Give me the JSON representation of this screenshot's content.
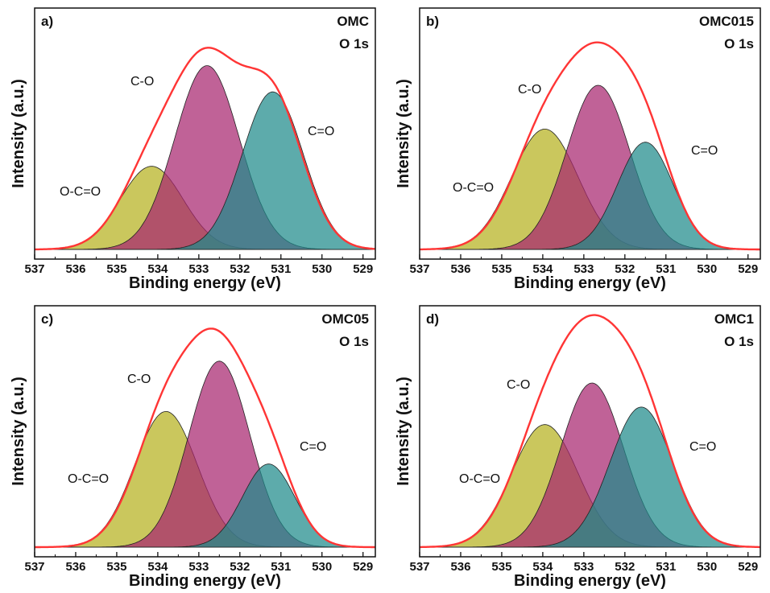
{
  "figure": {
    "x_label": "Binding energy (eV)",
    "y_label": "Intensity (a.u.)",
    "x_ticks": [
      "537",
      "536",
      "535",
      "534",
      "533",
      "532",
      "531",
      "530",
      "529"
    ],
    "spectrum": "O 1s",
    "colors": {
      "envelope": "#ff3535",
      "O-C=O": "#b5b21f",
      "C-O": "#a8266f",
      "C=O": "#1e8a8a",
      "frame": "#111111"
    }
  },
  "chart_data": [
    {
      "type": "area",
      "panel": "a)",
      "sample": "OMC",
      "spectrum": "O 1s",
      "xlabel": "Binding energy (eV)",
      "ylabel": "Intensity (a.u.)",
      "xlim": [
        537,
        528.7
      ],
      "x_reversed": true,
      "envelope_label": "",
      "series": [
        {
          "name": "O-C=O",
          "center": 534.15,
          "fwhm": 1.8,
          "height": 0.38
        },
        {
          "name": "C-O",
          "center": 532.8,
          "fwhm": 1.85,
          "height": 0.84
        },
        {
          "name": "C=O",
          "center": 531.2,
          "fwhm": 1.75,
          "height": 0.72
        }
      ]
    },
    {
      "type": "area",
      "panel": "b)",
      "sample": "OMC015",
      "spectrum": "O 1s",
      "xlabel": "Binding energy (eV)",
      "ylabel": "Intensity (a.u.)",
      "xlim": [
        537,
        528.7
      ],
      "x_reversed": true,
      "envelope_label": "",
      "series": [
        {
          "name": "O-C=O",
          "center": 533.95,
          "fwhm": 1.9,
          "height": 0.55
        },
        {
          "name": "C-O",
          "center": 532.65,
          "fwhm": 1.8,
          "height": 0.75
        },
        {
          "name": "C=O",
          "center": 531.5,
          "fwhm": 1.6,
          "height": 0.49
        }
      ]
    },
    {
      "type": "area",
      "panel": "c)",
      "sample": "OMC05",
      "spectrum": "O 1s",
      "xlabel": "Binding energy (eV)",
      "ylabel": "Intensity (a.u.)",
      "xlim": [
        537,
        528.7
      ],
      "x_reversed": true,
      "envelope_label": "",
      "series": [
        {
          "name": "O-C=O",
          "center": 533.8,
          "fwhm": 1.8,
          "height": 0.62
        },
        {
          "name": "C-O",
          "center": 532.5,
          "fwhm": 1.75,
          "height": 0.85
        },
        {
          "name": "C=O",
          "center": 531.3,
          "fwhm": 1.5,
          "height": 0.38
        }
      ]
    },
    {
      "type": "area",
      "panel": "d)",
      "sample": "OMC1",
      "spectrum": "O 1s",
      "xlabel": "Binding energy (eV)",
      "ylabel": "Intensity (a.u.)",
      "xlim": [
        537,
        528.7
      ],
      "x_reversed": true,
      "envelope_label": "",
      "series": [
        {
          "name": "O-C=O",
          "center": 533.95,
          "fwhm": 1.9,
          "height": 0.56
        },
        {
          "name": "C-O",
          "center": 532.8,
          "fwhm": 1.8,
          "height": 0.75
        },
        {
          "name": "C=O",
          "center": 531.6,
          "fwhm": 1.8,
          "height": 0.64
        }
      ]
    }
  ]
}
